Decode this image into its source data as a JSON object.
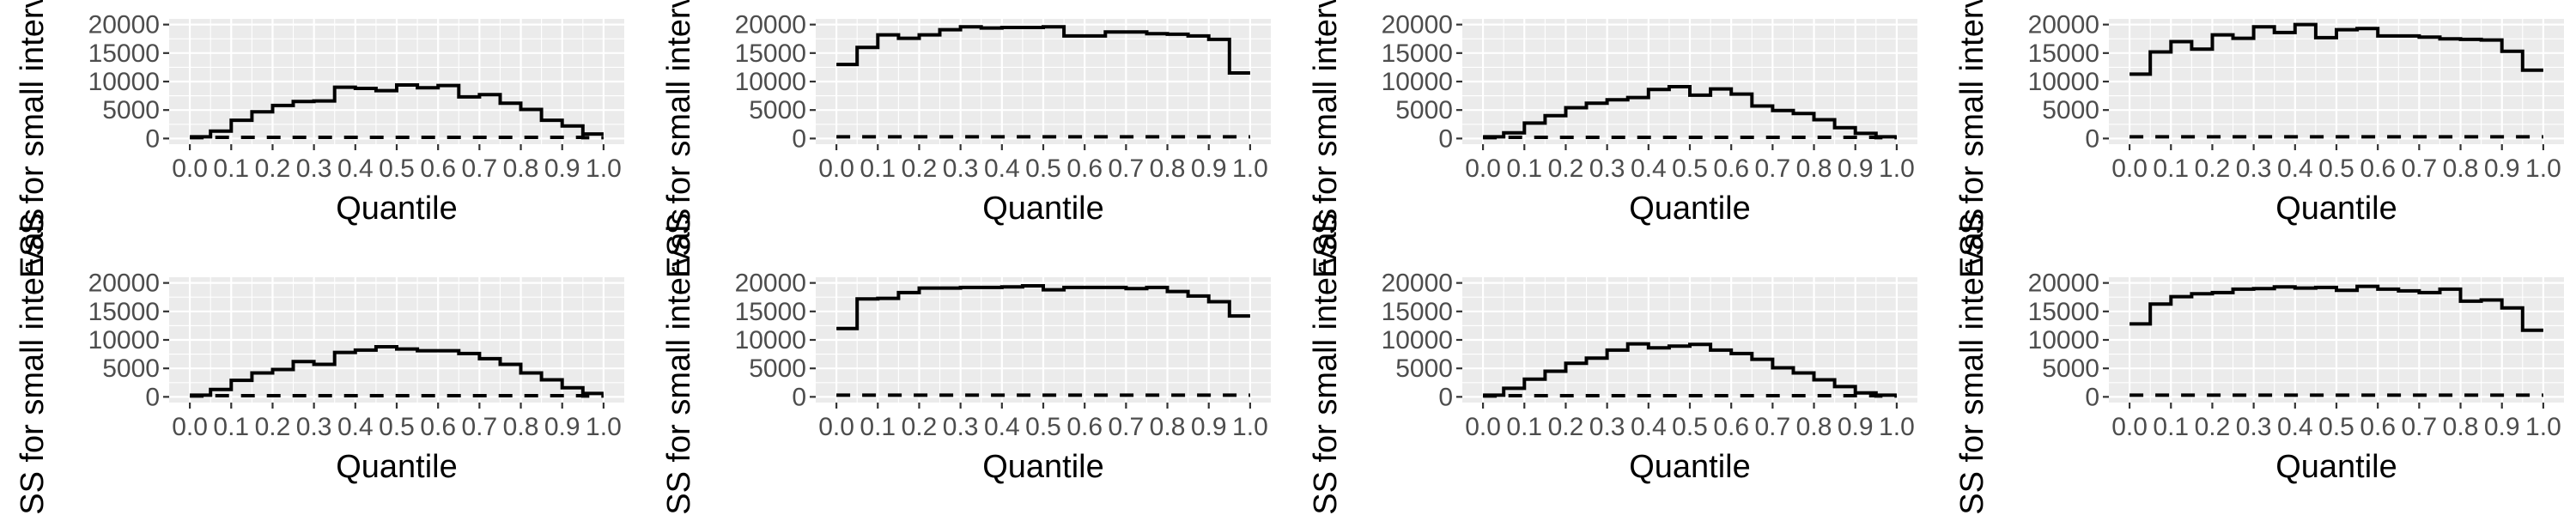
{
  "chart_data": [
    {
      "type": "step",
      "xlabel": "Quantile",
      "ylabel": "ESS for small intervals",
      "xlim": [
        0,
        1
      ],
      "ylim": [
        0,
        20000
      ],
      "x_ticks": [
        "0.0",
        "0.1",
        "0.2",
        "0.3",
        "0.4",
        "0.5",
        "0.6",
        "0.7",
        "0.8",
        "0.9",
        "1.0"
      ],
      "y_ticks": [
        "0",
        "5000",
        "10000",
        "15000",
        "20000"
      ],
      "bin_edges": [
        0,
        0.05,
        0.1,
        0.15,
        0.2,
        0.25,
        0.3,
        0.35,
        0.4,
        0.45,
        0.5,
        0.55,
        0.6,
        0.65,
        0.7,
        0.75,
        0.8,
        0.85,
        0.9,
        0.95,
        1.0
      ],
      "series": [
        {
          "values": [
            300,
            1300,
            3200,
            4700,
            5800,
            6500,
            6600,
            9000,
            8800,
            8400,
            9400,
            8900,
            9300,
            7300,
            7700,
            6200,
            5100,
            3200,
            2200,
            800
          ]
        },
        {
          "values": [
            150,
            200,
            200,
            200,
            200,
            200,
            200,
            200,
            200,
            200,
            200,
            200,
            200,
            200,
            200,
            200,
            200,
            200,
            200,
            150
          ]
        }
      ]
    },
    {
      "type": "step",
      "xlabel": "Quantile",
      "ylabel": "ESS for small intervals",
      "xlim": [
        0,
        1
      ],
      "ylim": [
        0,
        20000
      ],
      "x_ticks": [
        "0.0",
        "0.1",
        "0.2",
        "0.3",
        "0.4",
        "0.5",
        "0.6",
        "0.7",
        "0.8",
        "0.9",
        "1.0"
      ],
      "y_ticks": [
        "0",
        "5000",
        "10000",
        "15000",
        "20000"
      ],
      "bin_edges": [
        0,
        0.05,
        0.1,
        0.15,
        0.2,
        0.25,
        0.3,
        0.35,
        0.4,
        0.45,
        0.5,
        0.55,
        0.6,
        0.65,
        0.7,
        0.75,
        0.8,
        0.85,
        0.9,
        0.95,
        1.0
      ],
      "series": [
        {
          "values": [
            13000,
            16000,
            18200,
            17600,
            18200,
            19100,
            19600,
            19400,
            19500,
            19500,
            19600,
            18000,
            18000,
            18700,
            18700,
            18400,
            18300,
            18000,
            17400,
            11500
          ]
        },
        {
          "values": [
            300,
            300,
            300,
            300,
            300,
            300,
            300,
            300,
            300,
            300,
            300,
            300,
            300,
            300,
            300,
            300,
            300,
            300,
            300,
            300
          ]
        }
      ]
    },
    {
      "type": "step",
      "xlabel": "Quantile",
      "ylabel": "ESS for small intervals",
      "xlim": [
        0,
        1
      ],
      "ylim": [
        0,
        20000
      ],
      "x_ticks": [
        "0.0",
        "0.1",
        "0.2",
        "0.3",
        "0.4",
        "0.5",
        "0.6",
        "0.7",
        "0.8",
        "0.9",
        "1.0"
      ],
      "y_ticks": [
        "0",
        "5000",
        "10000",
        "15000",
        "20000"
      ],
      "bin_edges": [
        0,
        0.05,
        0.1,
        0.15,
        0.2,
        0.25,
        0.3,
        0.35,
        0.4,
        0.45,
        0.5,
        0.55,
        0.6,
        0.65,
        0.7,
        0.75,
        0.8,
        0.85,
        0.9,
        0.95,
        1.0
      ],
      "series": [
        {
          "values": [
            300,
            1000,
            2700,
            4000,
            5400,
            6200,
            6800,
            7200,
            8600,
            9100,
            7600,
            8700,
            7800,
            5700,
            4900,
            4400,
            3300,
            1900,
            900,
            300
          ]
        },
        {
          "values": [
            150,
            200,
            200,
            200,
            200,
            200,
            200,
            200,
            200,
            200,
            200,
            200,
            200,
            200,
            200,
            200,
            200,
            200,
            200,
            150
          ]
        }
      ]
    },
    {
      "type": "step",
      "xlabel": "Quantile",
      "ylabel": "ESS for small intervals",
      "xlim": [
        0,
        1
      ],
      "ylim": [
        0,
        20000
      ],
      "x_ticks": [
        "0.0",
        "0.1",
        "0.2",
        "0.3",
        "0.4",
        "0.5",
        "0.6",
        "0.7",
        "0.8",
        "0.9",
        "1.0"
      ],
      "y_ticks": [
        "0",
        "5000",
        "10000",
        "15000",
        "20000"
      ],
      "bin_edges": [
        0,
        0.05,
        0.1,
        0.15,
        0.2,
        0.25,
        0.3,
        0.35,
        0.4,
        0.45,
        0.5,
        0.55,
        0.6,
        0.65,
        0.7,
        0.75,
        0.8,
        0.85,
        0.9,
        0.95,
        1.0
      ],
      "series": [
        {
          "values": [
            11300,
            15200,
            17000,
            15700,
            18200,
            17600,
            19600,
            18600,
            20000,
            17700,
            19100,
            19300,
            18000,
            18000,
            17800,
            17500,
            17400,
            17300,
            15300,
            12000
          ]
        },
        {
          "values": [
            300,
            300,
            300,
            300,
            300,
            300,
            300,
            300,
            300,
            300,
            300,
            300,
            300,
            300,
            300,
            300,
            300,
            300,
            300,
            300
          ]
        }
      ]
    },
    {
      "type": "step",
      "xlabel": "Quantile",
      "ylabel": "ESS for small intervals",
      "xlim": [
        0,
        1
      ],
      "ylim": [
        0,
        20000
      ],
      "x_ticks": [
        "0.0",
        "0.1",
        "0.2",
        "0.3",
        "0.4",
        "0.5",
        "0.6",
        "0.7",
        "0.8",
        "0.9",
        "1.0"
      ],
      "y_ticks": [
        "0",
        "5000",
        "10000",
        "15000",
        "20000"
      ],
      "bin_edges": [
        0,
        0.05,
        0.1,
        0.15,
        0.2,
        0.25,
        0.3,
        0.35,
        0.4,
        0.45,
        0.5,
        0.55,
        0.6,
        0.65,
        0.7,
        0.75,
        0.8,
        0.85,
        0.9,
        0.95,
        1.0
      ],
      "series": [
        {
          "values": [
            300,
            1300,
            2900,
            4200,
            4800,
            6200,
            5700,
            7800,
            8200,
            8800,
            8400,
            8100,
            8100,
            7600,
            6700,
            5700,
            4200,
            3000,
            1600,
            600
          ]
        },
        {
          "values": [
            150,
            200,
            200,
            200,
            200,
            200,
            200,
            200,
            200,
            200,
            200,
            200,
            200,
            200,
            200,
            200,
            200,
            200,
            200,
            150
          ]
        }
      ]
    },
    {
      "type": "step",
      "xlabel": "Quantile",
      "ylabel": "ESS for small intervals",
      "xlim": [
        0,
        1
      ],
      "ylim": [
        0,
        20000
      ],
      "x_ticks": [
        "0.0",
        "0.1",
        "0.2",
        "0.3",
        "0.4",
        "0.5",
        "0.6",
        "0.7",
        "0.8",
        "0.9",
        "1.0"
      ],
      "y_ticks": [
        "0",
        "5000",
        "10000",
        "15000",
        "20000"
      ],
      "bin_edges": [
        0,
        0.05,
        0.1,
        0.15,
        0.2,
        0.25,
        0.3,
        0.35,
        0.4,
        0.45,
        0.5,
        0.55,
        0.6,
        0.65,
        0.7,
        0.75,
        0.8,
        0.85,
        0.9,
        0.95,
        1.0
      ],
      "series": [
        {
          "values": [
            12000,
            17200,
            17300,
            18300,
            19100,
            19100,
            19200,
            19200,
            19300,
            19500,
            18800,
            19200,
            19200,
            19200,
            19000,
            19200,
            18500,
            17700,
            16700,
            14200
          ]
        },
        {
          "values": [
            300,
            300,
            300,
            300,
            300,
            300,
            300,
            300,
            300,
            300,
            300,
            300,
            300,
            300,
            300,
            300,
            300,
            300,
            300,
            300
          ]
        }
      ]
    },
    {
      "type": "step",
      "xlabel": "Quantile",
      "ylabel": "ESS for small intervals",
      "xlim": [
        0,
        1
      ],
      "ylim": [
        0,
        20000
      ],
      "x_ticks": [
        "0.0",
        "0.1",
        "0.2",
        "0.3",
        "0.4",
        "0.5",
        "0.6",
        "0.7",
        "0.8",
        "0.9",
        "1.0"
      ],
      "y_ticks": [
        "0",
        "5000",
        "10000",
        "15000",
        "20000"
      ],
      "bin_edges": [
        0,
        0.05,
        0.1,
        0.15,
        0.2,
        0.25,
        0.3,
        0.35,
        0.4,
        0.45,
        0.5,
        0.55,
        0.6,
        0.65,
        0.7,
        0.75,
        0.8,
        0.85,
        0.9,
        0.95,
        1.0
      ],
      "series": [
        {
          "values": [
            300,
            1500,
            3100,
            4500,
            5900,
            6800,
            8200,
            9300,
            8600,
            8900,
            9200,
            8200,
            7600,
            6600,
            5100,
            4200,
            3000,
            1800,
            700,
            300
          ]
        },
        {
          "values": [
            150,
            200,
            200,
            200,
            200,
            200,
            200,
            200,
            200,
            200,
            200,
            200,
            200,
            200,
            200,
            200,
            200,
            200,
            200,
            150
          ]
        }
      ]
    },
    {
      "type": "step",
      "xlabel": "Quantile",
      "ylabel": "ESS for small intervals",
      "xlim": [
        0,
        1
      ],
      "ylim": [
        0,
        20000
      ],
      "x_ticks": [
        "0.0",
        "0.1",
        "0.2",
        "0.3",
        "0.4",
        "0.5",
        "0.6",
        "0.7",
        "0.8",
        "0.9",
        "1.0"
      ],
      "y_ticks": [
        "0",
        "5000",
        "10000",
        "15000",
        "20000"
      ],
      "bin_edges": [
        0,
        0.05,
        0.1,
        0.15,
        0.2,
        0.25,
        0.3,
        0.35,
        0.4,
        0.45,
        0.5,
        0.55,
        0.6,
        0.65,
        0.7,
        0.75,
        0.8,
        0.85,
        0.9,
        0.95,
        1.0
      ],
      "series": [
        {
          "values": [
            12800,
            16300,
            17600,
            18100,
            18300,
            18900,
            19000,
            19300,
            19100,
            19200,
            18700,
            19400,
            18900,
            18600,
            18300,
            18900,
            16800,
            17000,
            15600,
            11700
          ]
        },
        {
          "values": [
            300,
            300,
            300,
            300,
            300,
            300,
            300,
            300,
            300,
            300,
            300,
            300,
            300,
            300,
            300,
            300,
            300,
            300,
            300,
            300
          ]
        }
      ]
    }
  ]
}
